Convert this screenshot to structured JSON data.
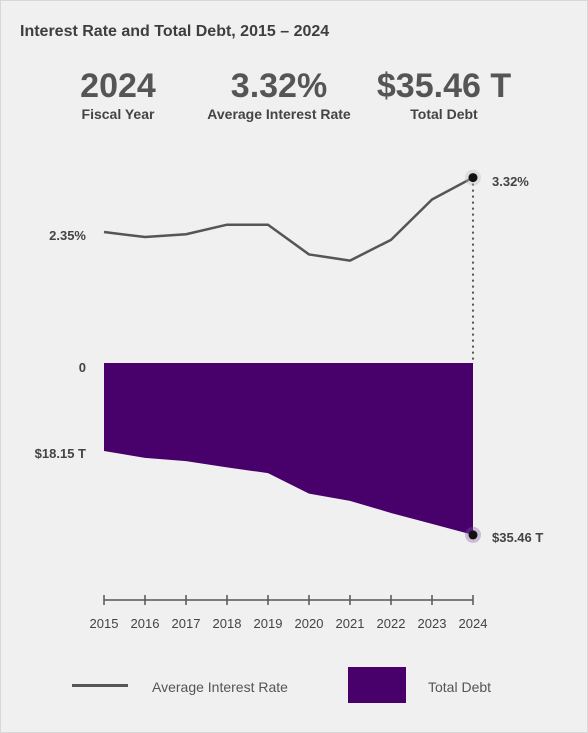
{
  "title": "Interest Rate and Total Debt, 2015 – 2024",
  "kpis": [
    {
      "value": "2024",
      "label": "Fiscal Year"
    },
    {
      "value": "3.32%",
      "label": "Average Interest Rate"
    },
    {
      "value": "$35.46 T",
      "label": "Total Debt"
    }
  ],
  "colors": {
    "rate_line": "#555555",
    "debt_fill": "#48006b",
    "marker": "#111111",
    "accent": "#48006b"
  },
  "chart_data": {
    "type": "line",
    "title": "Interest Rate and Total Debt, 2015 – 2024",
    "categories": [
      "2015",
      "2016",
      "2017",
      "2018",
      "2019",
      "2020",
      "2021",
      "2022",
      "2023",
      "2024"
    ],
    "series": [
      {
        "name": "Average Interest Rate",
        "values": [
          2.35,
          2.26,
          2.31,
          2.48,
          2.48,
          1.95,
          1.84,
          2.21,
          2.93,
          3.32
        ]
      },
      {
        "name": "Total Debt",
        "type": "area",
        "values": [
          18.15,
          19.57,
          20.24,
          21.52,
          22.72,
          26.95,
          28.43,
          30.93,
          33.17,
          35.46
        ]
      }
    ],
    "rate_labels": {
      "left": "2.35%",
      "end": "3.32%"
    },
    "debt_labels": {
      "zero": "0",
      "left": "$18.15 T",
      "end": "$35.46 T"
    },
    "legend": {
      "rate": "Average Interest Rate",
      "debt": "Total Debt",
      "placement": "bottom"
    }
  }
}
